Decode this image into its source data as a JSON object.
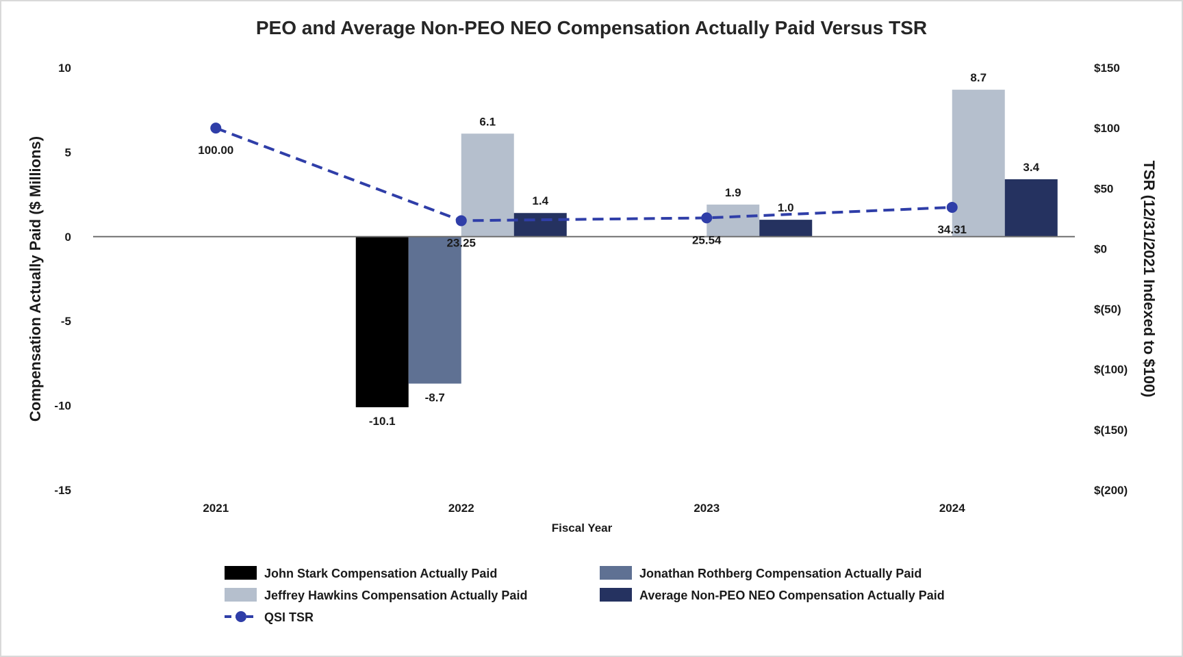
{
  "chart_data": {
    "type": "bar",
    "title": "PEO and Average Non-PEO NEO Compensation Actually Paid Versus TSR",
    "xlabel": "Fiscal Year",
    "ylabel": "Compensation Actually Paid ($ Millions)",
    "y2label": "TSR (12/31/2021 Indexed to $100)",
    "categories": [
      "2021",
      "2022",
      "2023",
      "2024"
    ],
    "ylim": [
      -15,
      10
    ],
    "yticks": [
      10,
      5,
      0,
      -5,
      -10,
      -15
    ],
    "ytick_labels": [
      "10",
      "5",
      "0",
      "-5",
      "-10",
      "-15"
    ],
    "y2lim": [
      -200,
      150
    ],
    "y2ticks": [
      150,
      100,
      50,
      0,
      -50,
      -100,
      -150,
      -200
    ],
    "y2tick_labels": [
      "$150",
      "$100",
      "$50",
      "$0",
      "$(50)",
      "$(100)",
      "$(150)",
      "$(200)"
    ],
    "series": [
      {
        "name": "John Stark Compensation Actually Paid",
        "color": "#000000",
        "values": [
          null,
          -10.1,
          null,
          null
        ],
        "labels": [
          null,
          "-10.1",
          null,
          null
        ]
      },
      {
        "name": "Jonathan Rothberg Compensation Actually Paid",
        "color": "#5f7193",
        "values": [
          null,
          -8.7,
          null,
          null
        ],
        "labels": [
          null,
          "-8.7",
          null,
          null
        ]
      },
      {
        "name": "Jeffrey Hawkins Compensation Actually Paid",
        "color": "#b5bfcd",
        "values": [
          null,
          6.1,
          1.9,
          8.7
        ],
        "labels": [
          null,
          "6.1",
          "1.9",
          "8.7"
        ]
      },
      {
        "name": "Average Non-PEO NEO Compensation Actually Paid",
        "color": "#253260",
        "values": [
          null,
          1.4,
          1.0,
          3.4
        ],
        "labels": [
          null,
          "1.4",
          "1.0",
          "3.4"
        ]
      }
    ],
    "line_series": {
      "name": "QSI TSR",
      "color": "#2f3ea8",
      "axis": "right",
      "values": [
        100.0,
        23.25,
        25.54,
        34.31
      ],
      "labels": [
        "100.00",
        "23.25",
        "25.54",
        "34.31"
      ]
    },
    "legend_position": "bottom"
  }
}
